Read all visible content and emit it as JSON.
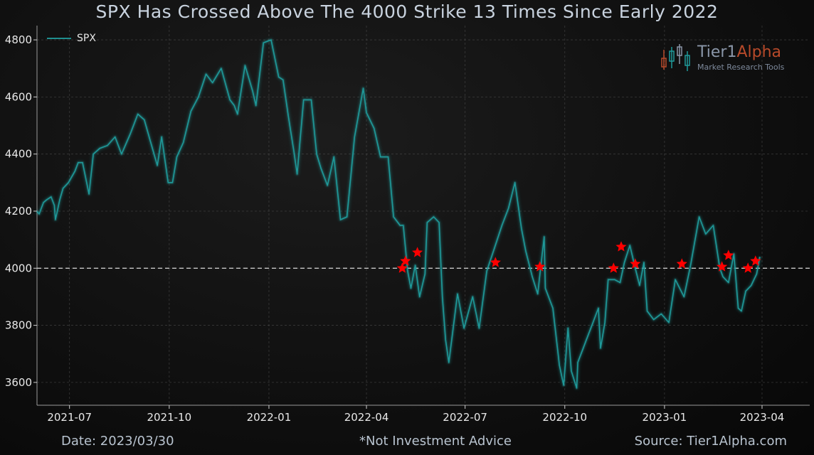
{
  "title": "SPX Has Crossed Above The 4000 Strike 13 Times Since Early 2022",
  "footer": {
    "date": "Date: 2023/03/30",
    "note": "*Not Investment Advice",
    "source": "Source: Tier1Alpha.com"
  },
  "logo": {
    "name_part1": "Tier1",
    "name_part2": "Alpha",
    "tagline": "Market  Research Tools"
  },
  "legend": {
    "label": "SPX"
  },
  "colors": {
    "line": "#1f9a9a",
    "line_glow": "#27c7c7",
    "marker": "#ff0000",
    "reference": "#c8c8c8",
    "grid": "#5a5a5a",
    "tick_text": "#e8e8e8"
  },
  "chart_data": {
    "type": "line",
    "title": "SPX Has Crossed Above The 4000 Strike 13 Times Since Early 2022",
    "xlabel": "",
    "ylabel": "",
    "ylim": [
      3520,
      4850
    ],
    "xlim": [
      "2021-06-01",
      "2023-05-15"
    ],
    "grid": true,
    "legend_position": "top-left",
    "y_ticks": [
      3600,
      3800,
      4000,
      4200,
      4400,
      4600,
      4800
    ],
    "x_ticks": [
      {
        "date": "2021-07-01",
        "label": "2021-07"
      },
      {
        "date": "2021-10-01",
        "label": "2021-10"
      },
      {
        "date": "2022-01-01",
        "label": "2022-01"
      },
      {
        "date": "2022-04-01",
        "label": "2022-04"
      },
      {
        "date": "2022-07-01",
        "label": "2022-07"
      },
      {
        "date": "2022-10-01",
        "label": "2022-10"
      },
      {
        "date": "2023-01-01",
        "label": "2023-01"
      },
      {
        "date": "2023-04-01",
        "label": "2023-04"
      }
    ],
    "reference_line": {
      "y": 4000,
      "style": "dashed"
    },
    "series": [
      {
        "name": "SPX",
        "points": [
          [
            "2021-06-01",
            4200
          ],
          [
            "2021-06-03",
            4190
          ],
          [
            "2021-06-07",
            4230
          ],
          [
            "2021-06-10",
            4240
          ],
          [
            "2021-06-14",
            4250
          ],
          [
            "2021-06-17",
            4220
          ],
          [
            "2021-06-18",
            4170
          ],
          [
            "2021-06-22",
            4240
          ],
          [
            "2021-06-25",
            4280
          ],
          [
            "2021-06-30",
            4300
          ],
          [
            "2021-07-06",
            4340
          ],
          [
            "2021-07-09",
            4370
          ],
          [
            "2021-07-13",
            4370
          ],
          [
            "2021-07-19",
            4260
          ],
          [
            "2021-07-23",
            4400
          ],
          [
            "2021-07-29",
            4420
          ],
          [
            "2021-08-05",
            4430
          ],
          [
            "2021-08-12",
            4460
          ],
          [
            "2021-08-18",
            4400
          ],
          [
            "2021-08-26",
            4470
          ],
          [
            "2021-09-02",
            4540
          ],
          [
            "2021-09-08",
            4520
          ],
          [
            "2021-09-14",
            4440
          ],
          [
            "2021-09-20",
            4360
          ],
          [
            "2021-09-24",
            4460
          ],
          [
            "2021-09-30",
            4300
          ],
          [
            "2021-10-04",
            4300
          ],
          [
            "2021-10-08",
            4390
          ],
          [
            "2021-10-14",
            4440
          ],
          [
            "2021-10-21",
            4550
          ],
          [
            "2021-10-28",
            4600
          ],
          [
            "2021-11-04",
            4680
          ],
          [
            "2021-11-10",
            4650
          ],
          [
            "2021-11-18",
            4700
          ],
          [
            "2021-11-26",
            4590
          ],
          [
            "2021-11-30",
            4570
          ],
          [
            "2021-12-03",
            4540
          ],
          [
            "2021-12-10",
            4710
          ],
          [
            "2021-12-17",
            4620
          ],
          [
            "2021-12-20",
            4570
          ],
          [
            "2021-12-27",
            4790
          ],
          [
            "2022-01-03",
            4800
          ],
          [
            "2022-01-10",
            4670
          ],
          [
            "2022-01-14",
            4660
          ],
          [
            "2022-01-19",
            4530
          ],
          [
            "2022-01-24",
            4410
          ],
          [
            "2022-01-27",
            4330
          ],
          [
            "2022-02-02",
            4590
          ],
          [
            "2022-02-09",
            4590
          ],
          [
            "2022-02-14",
            4400
          ],
          [
            "2022-02-18",
            4350
          ],
          [
            "2022-02-24",
            4290
          ],
          [
            "2022-03-02",
            4390
          ],
          [
            "2022-03-08",
            4170
          ],
          [
            "2022-03-14",
            4180
          ],
          [
            "2022-03-21",
            4460
          ],
          [
            "2022-03-29",
            4630
          ],
          [
            "2022-04-01",
            4545
          ],
          [
            "2022-04-08",
            4490
          ],
          [
            "2022-04-14",
            4390
          ],
          [
            "2022-04-21",
            4390
          ],
          [
            "2022-04-26",
            4180
          ],
          [
            "2022-05-02",
            4150
          ],
          [
            "2022-05-05",
            4150
          ],
          [
            "2022-05-09",
            3990
          ],
          [
            "2022-05-12",
            3930
          ],
          [
            "2022-05-16",
            4010
          ],
          [
            "2022-05-20",
            3900
          ],
          [
            "2022-05-25",
            3980
          ],
          [
            "2022-05-27",
            4160
          ],
          [
            "2022-06-02",
            4180
          ],
          [
            "2022-06-07",
            4160
          ],
          [
            "2022-06-10",
            3900
          ],
          [
            "2022-06-13",
            3750
          ],
          [
            "2022-06-16",
            3670
          ],
          [
            "2022-06-24",
            3910
          ],
          [
            "2022-06-30",
            3790
          ],
          [
            "2022-07-08",
            3900
          ],
          [
            "2022-07-14",
            3790
          ],
          [
            "2022-07-21",
            3990
          ],
          [
            "2022-07-28",
            4070
          ],
          [
            "2022-08-04",
            4150
          ],
          [
            "2022-08-10",
            4210
          ],
          [
            "2022-08-16",
            4300
          ],
          [
            "2022-08-22",
            4140
          ],
          [
            "2022-08-26",
            4060
          ],
          [
            "2022-09-01",
            3970
          ],
          [
            "2022-09-06",
            3910
          ],
          [
            "2022-09-12",
            4110
          ],
          [
            "2022-09-13",
            3930
          ],
          [
            "2022-09-20",
            3860
          ],
          [
            "2022-09-26",
            3660
          ],
          [
            "2022-09-30",
            3590
          ],
          [
            "2022-10-04",
            3790
          ],
          [
            "2022-10-07",
            3640
          ],
          [
            "2022-10-12",
            3580
          ],
          [
            "2022-10-13",
            3670
          ],
          [
            "2022-10-18",
            3720
          ],
          [
            "2022-10-21",
            3750
          ],
          [
            "2022-10-27",
            3810
          ],
          [
            "2022-11-01",
            3860
          ],
          [
            "2022-11-03",
            3720
          ],
          [
            "2022-11-07",
            3810
          ],
          [
            "2022-11-10",
            3960
          ],
          [
            "2022-11-16",
            3960
          ],
          [
            "2022-11-21",
            3950
          ],
          [
            "2022-11-25",
            4020
          ],
          [
            "2022-11-30",
            4080
          ],
          [
            "2022-12-05",
            4000
          ],
          [
            "2022-12-09",
            3940
          ],
          [
            "2022-12-13",
            4020
          ],
          [
            "2022-12-16",
            3850
          ],
          [
            "2022-12-22",
            3820
          ],
          [
            "2022-12-29",
            3840
          ],
          [
            "2023-01-05",
            3810
          ],
          [
            "2023-01-11",
            3960
          ],
          [
            "2023-01-19",
            3900
          ],
          [
            "2023-01-25",
            4010
          ],
          [
            "2023-02-02",
            4180
          ],
          [
            "2023-02-08",
            4120
          ],
          [
            "2023-02-15",
            4150
          ],
          [
            "2023-02-21",
            4000
          ],
          [
            "2023-02-24",
            3970
          ],
          [
            "2023-03-01",
            3950
          ],
          [
            "2023-03-06",
            4050
          ],
          [
            "2023-03-10",
            3860
          ],
          [
            "2023-03-13",
            3850
          ],
          [
            "2023-03-17",
            3920
          ],
          [
            "2023-03-22",
            3940
          ],
          [
            "2023-03-27",
            3980
          ],
          [
            "2023-03-30",
            4040
          ]
        ]
      }
    ],
    "cross_markers": [
      [
        "2022-05-04",
        4000
      ],
      [
        "2022-05-07",
        4025
      ],
      [
        "2022-05-18",
        4055
      ],
      [
        "2022-07-29",
        4020
      ],
      [
        "2022-09-08",
        4005
      ],
      [
        "2022-11-15",
        4000
      ],
      [
        "2022-11-22",
        4075
      ],
      [
        "2022-12-05",
        4015
      ],
      [
        "2023-01-17",
        4015
      ],
      [
        "2023-02-23",
        4005
      ],
      [
        "2023-03-01",
        4045
      ],
      [
        "2023-03-19",
        4000
      ],
      [
        "2023-03-26",
        4025
      ]
    ]
  }
}
